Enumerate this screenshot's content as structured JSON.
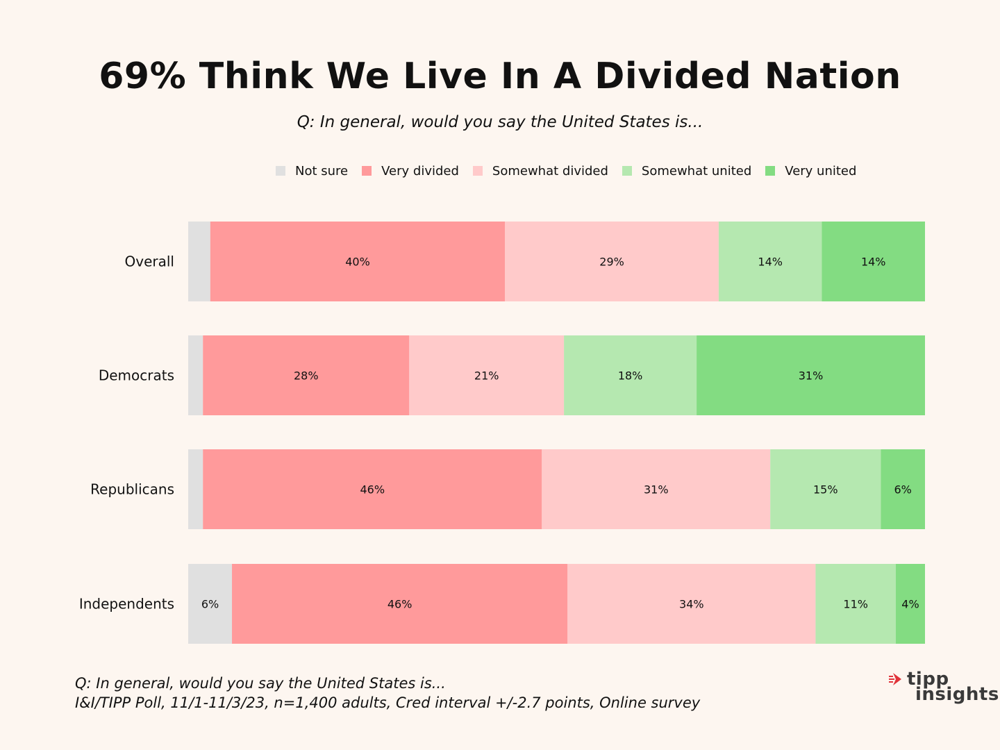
{
  "title": "69% Think We Live In A Divided Nation",
  "subtitle": "Q: In general, would you say the United States is...",
  "legend": [
    {
      "label": "Not sure",
      "color": "#e0e0e0"
    },
    {
      "label": "Very divided",
      "color": "#ff9a9b"
    },
    {
      "label": "Somewhat divided",
      "color": "#ffcaca"
    },
    {
      "label": "Somewhat united",
      "color": "#b5e8b0"
    },
    {
      "label": "Very united",
      "color": "#83dc82"
    }
  ],
  "chart_data": {
    "type": "bar",
    "orientation": "horizontal",
    "stacked": true,
    "categories": [
      "Overall",
      "Democrats",
      "Republicans",
      "Independents"
    ],
    "series": [
      {
        "name": "Not sure",
        "values": [
          3,
          2,
          2,
          6
        ],
        "labels": [
          "",
          "",
          "",
          "6%"
        ]
      },
      {
        "name": "Very divided",
        "values": [
          40,
          28,
          46,
          46
        ],
        "labels": [
          "40%",
          "28%",
          "46%",
          "46%"
        ]
      },
      {
        "name": "Somewhat divided",
        "values": [
          29,
          21,
          31,
          34
        ],
        "labels": [
          "29%",
          "21%",
          "31%",
          "34%"
        ]
      },
      {
        "name": "Somewhat united",
        "values": [
          14,
          18,
          15,
          11
        ],
        "labels": [
          "14%",
          "18%",
          "15%",
          "11%"
        ]
      },
      {
        "name": "Very united",
        "values": [
          14,
          31,
          6,
          4
        ],
        "labels": [
          "14%",
          "31%",
          "6%",
          "4%"
        ]
      }
    ],
    "xlim": [
      0,
      100
    ],
    "grid": false,
    "legend_position": "top"
  },
  "footer": {
    "line1": "Q:  In general, would you say the United States is...",
    "line2": "I&I/TIPP Poll, 11/1-11/3/23, n=1,400 adults, Cred interval +/-2.7 points, Online survey"
  },
  "logo": {
    "line1": "tipp",
    "line2": "insights",
    "icon": "tipp-arrow-icon"
  }
}
